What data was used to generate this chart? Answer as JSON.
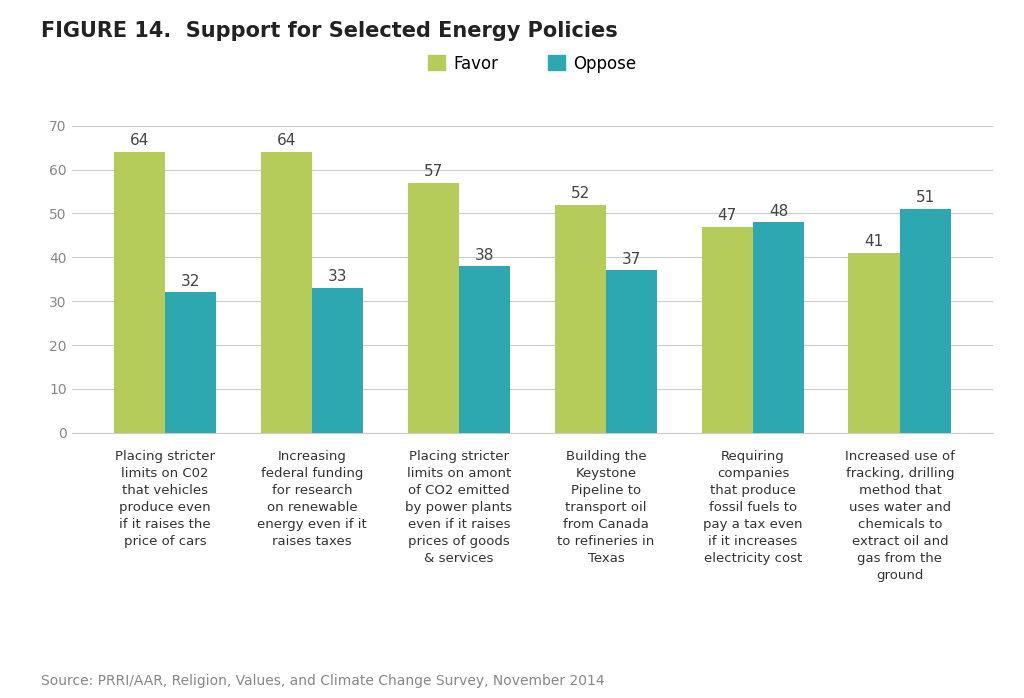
{
  "title": "FIGURE 14.  Support for Selected Energy Policies",
  "source": "Source: PRRI/AAR, Religion, Values, and Climate Change Survey, November 2014",
  "categories": [
    "Placing stricter\nlimits on C02\nthat vehicles\nproduce even\nif it raises the\nprice of cars",
    "Increasing\nfederal funding\nfor research\non renewable\nenergy even if it\nraises taxes",
    "Placing stricter\nlimits on amont\nof CO2 emitted\nby power plants\neven if it raises\nprices of goods\n& services",
    "Building the\nKeystone\nPipeline to\ntransport oil\nfrom Canada\nto refineries in\nTexas",
    "Requiring\ncompanies\nthat produce\nfossil fuels to\npay a tax even\nif it increases\nelectricity cost",
    "Increased use of\nfracking, drilling\nmethod that\nuses water and\nchemicals to\nextract oil and\ngas from the\nground"
  ],
  "favor_values": [
    64,
    64,
    57,
    52,
    47,
    41
  ],
  "oppose_values": [
    32,
    33,
    38,
    37,
    48,
    51
  ],
  "favor_color": "#b5cc5a",
  "oppose_color": "#2da8b0",
  "legend_favor": "Favor",
  "legend_oppose": "Oppose",
  "ylim": [
    0,
    70
  ],
  "yticks": [
    0,
    10,
    20,
    30,
    40,
    50,
    60,
    70
  ],
  "bar_width": 0.35,
  "title_fontsize": 15,
  "label_fontsize": 9.5,
  "tick_fontsize": 10,
  "value_fontsize": 11,
  "source_fontsize": 10,
  "background_color": "#ffffff"
}
